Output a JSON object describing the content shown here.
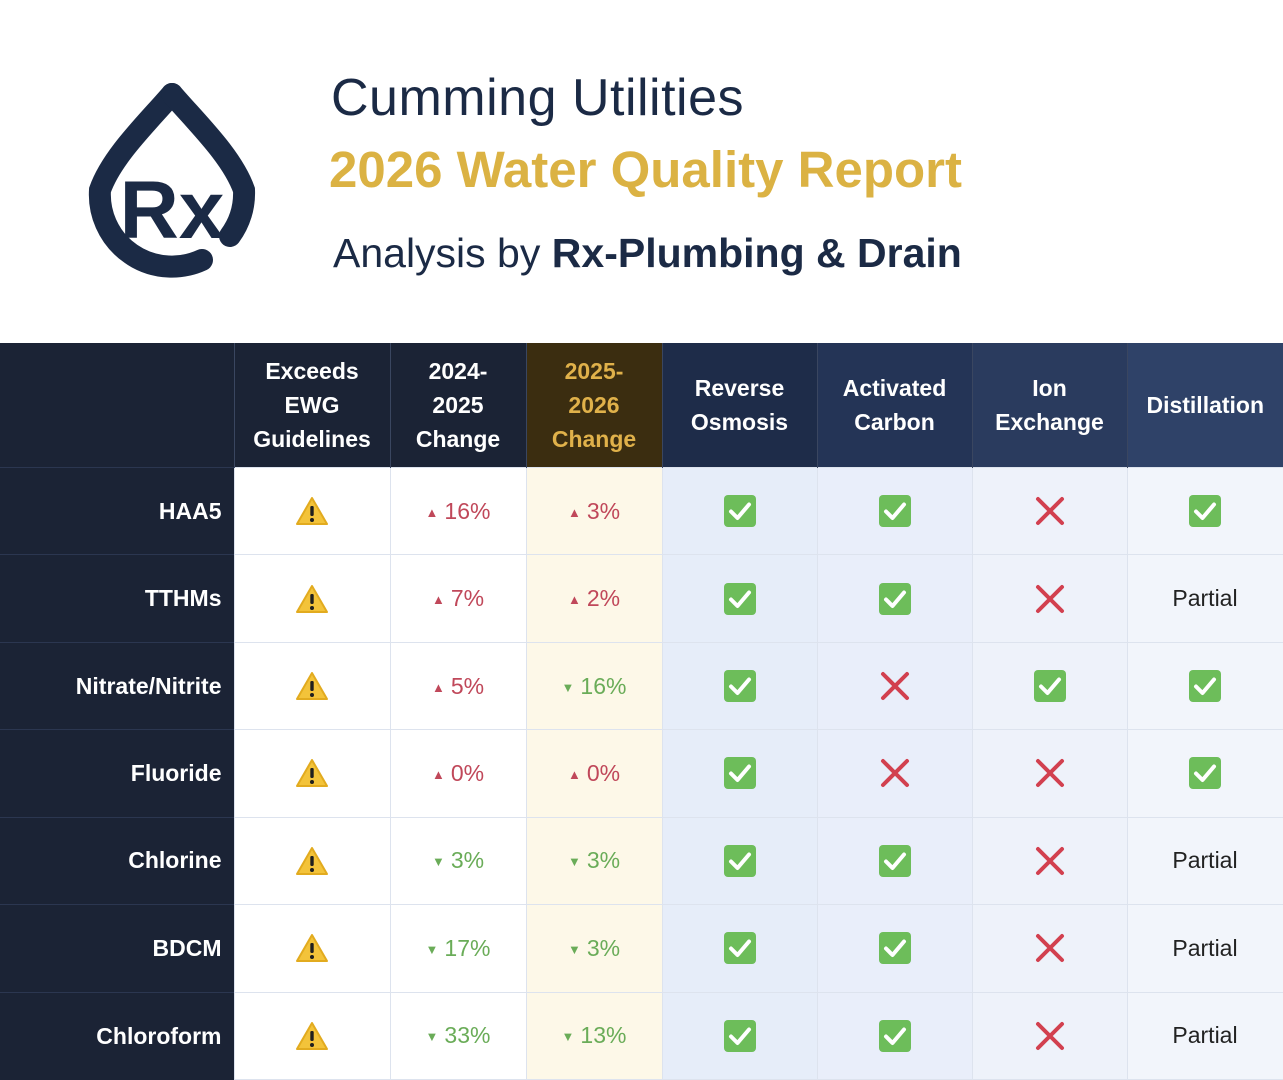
{
  "header": {
    "title": "Cumming Utilities",
    "subtitle": "2026 Water Quality Report",
    "byline_prefix": "Analysis by",
    "byline_company": "Rx-Plumbing & Drain",
    "logo_text": "Rx"
  },
  "colors": {
    "navy": "#1b2335",
    "gold": "#dbb243",
    "increase": "#c0485a",
    "decrease": "#6aac58",
    "check": "#6dbd5a",
    "cross": "#d2404f",
    "warning": "#f3c33a"
  },
  "table": {
    "columns": {
      "ewg": [
        "Exceeds",
        "EWG",
        "Guidelines"
      ],
      "change_2425": [
        "2024-",
        "2025",
        "Change"
      ],
      "change_2526": [
        "2025-",
        "2026",
        "Change"
      ],
      "ro": [
        "Reverse",
        "Osmosis"
      ],
      "ac": [
        "Activated",
        "Carbon"
      ],
      "ie": [
        "Ion",
        "Exchange"
      ],
      "di": [
        "Distillation"
      ]
    },
    "rows": [
      {
        "name": "HAA5",
        "ewg": "warning-icon",
        "c1": "16%",
        "c1_dir": "up",
        "c2": "3%",
        "c2_dir": "up",
        "ro": "check",
        "ac": "check",
        "ie": "cross",
        "di": "check"
      },
      {
        "name": "TTHMs",
        "ewg": "warning-icon",
        "c1": "7%",
        "c1_dir": "up",
        "c2": "2%",
        "c2_dir": "up",
        "ro": "check",
        "ac": "check",
        "ie": "cross",
        "di": "Partial"
      },
      {
        "name": "Nitrate/Nitrite",
        "ewg": "warning-icon",
        "c1": "5%",
        "c1_dir": "up",
        "c2": "16%",
        "c2_dir": "down",
        "ro": "check",
        "ac": "cross",
        "ie": "check",
        "di": "check"
      },
      {
        "name": "Fluoride",
        "ewg": "warning-icon",
        "c1": "0%",
        "c1_dir": "up",
        "c2": "0%",
        "c2_dir": "up",
        "ro": "check",
        "ac": "cross",
        "ie": "cross",
        "di": "check"
      },
      {
        "name": "Chlorine",
        "ewg": "warning-icon",
        "c1": "3%",
        "c1_dir": "down",
        "c2": "3%",
        "c2_dir": "down",
        "ro": "check",
        "ac": "check",
        "ie": "cross",
        "di": "Partial"
      },
      {
        "name": "BDCM",
        "ewg": "warning-icon",
        "c1": "17%",
        "c1_dir": "down",
        "c2": "3%",
        "c2_dir": "down",
        "ro": "check",
        "ac": "check",
        "ie": "cross",
        "di": "Partial"
      },
      {
        "name": "Chloroform",
        "ewg": "warning-icon",
        "c1": "33%",
        "c1_dir": "down",
        "c2": "13%",
        "c2_dir": "down",
        "ro": "check",
        "ac": "check",
        "ie": "cross",
        "di": "Partial"
      }
    ]
  }
}
